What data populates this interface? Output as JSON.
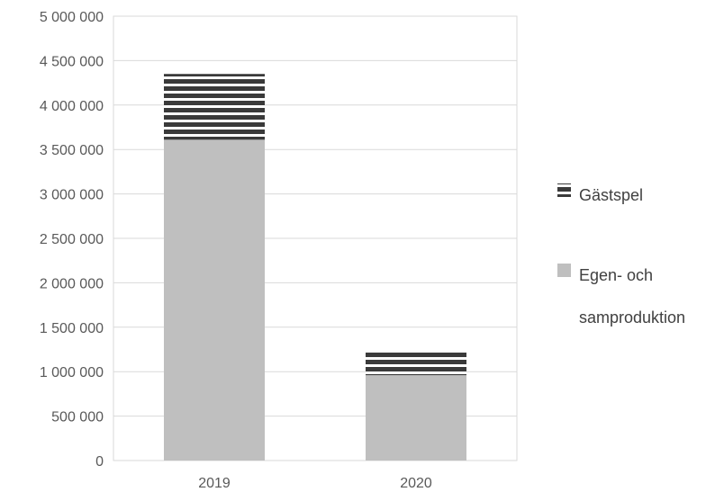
{
  "chart_data": {
    "type": "bar",
    "stacked": true,
    "categories": [
      "2019",
      "2020"
    ],
    "series": [
      {
        "name": "Egen- och samproduktion",
        "values": [
          3610000,
          960000
        ],
        "color": "#bfbfbf",
        "pattern": "solid"
      },
      {
        "name": "Gästspel",
        "values": [
          740000,
          260000
        ],
        "color": "#3a3a3a",
        "pattern": "horizontal-stripes"
      }
    ],
    "ylim": [
      0,
      5000000
    ],
    "yticks": [
      0,
      500000,
      1000000,
      1500000,
      2000000,
      2500000,
      3000000,
      3500000,
      4000000,
      4500000,
      5000000
    ],
    "ytick_labels": [
      "0",
      "500 000",
      "1 000 000",
      "1 500 000",
      "2 000 000",
      "2 500 000",
      "3 000 000",
      "3 500 000",
      "4 000 000",
      "4 500 000",
      "5 000 000"
    ],
    "grid": true,
    "legend_position": "right",
    "legend": {
      "gastspel": "Gästspel",
      "egen_line1": "Egen- och",
      "egen_line2": "samproduktion"
    }
  }
}
